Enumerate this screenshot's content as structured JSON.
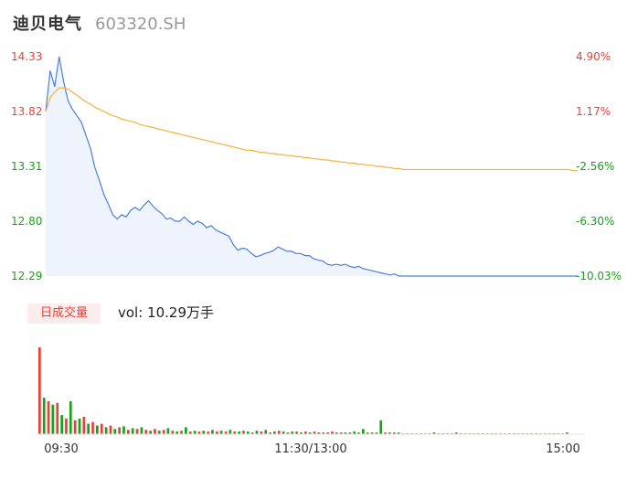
{
  "header": {
    "name": "迪贝电气",
    "code": "603320.SH"
  },
  "volume_panel": {
    "tag": "日成交量",
    "vol_label": "vol: 10.29万手"
  },
  "colors": {
    "up": "#e5433a",
    "down": "#1aa11a",
    "flat": "#999999",
    "price_line": "#4a7fe0",
    "avg_line": "#f2b33d",
    "area_fill": "#eef3fc"
  },
  "chart_data": [
    {
      "type": "line",
      "title": "",
      "y_ticks_left": [
        "14.33",
        "13.82",
        "13.31",
        "12.80",
        "12.29"
      ],
      "y_ticks_right": [
        "4.90%",
        "1.17%",
        "-2.56%",
        "-6.30%",
        "-10.03%"
      ],
      "ylim": [
        12.29,
        14.33
      ],
      "prev_close": 13.66,
      "x_ticks": [
        "09:30",
        "11:30/13:00",
        "15:00"
      ],
      "grid": false,
      "series": [
        {
          "key": "price",
          "values": [
            13.82,
            14.2,
            14.05,
            14.33,
            14.1,
            13.92,
            13.84,
            13.78,
            13.72,
            13.6,
            13.48,
            13.3,
            13.18,
            13.05,
            12.96,
            12.86,
            12.82,
            12.86,
            12.84,
            12.9,
            12.93,
            12.9,
            12.95,
            12.99,
            12.94,
            12.9,
            12.87,
            12.82,
            12.83,
            12.8,
            12.8,
            12.84,
            12.8,
            12.77,
            12.8,
            12.78,
            12.74,
            12.76,
            12.72,
            12.7,
            12.68,
            12.66,
            12.58,
            12.53,
            12.55,
            12.54,
            12.5,
            12.47,
            12.48,
            12.5,
            12.51,
            12.53,
            12.56,
            12.54,
            12.52,
            12.52,
            12.5,
            12.5,
            12.48,
            12.48,
            12.45,
            12.44,
            12.43,
            12.4,
            12.39,
            12.4,
            12.39,
            12.4,
            12.38,
            12.37,
            12.38,
            12.36,
            12.35,
            12.34,
            12.33,
            12.32,
            12.31,
            12.3,
            12.31,
            12.29,
            12.29,
            12.29,
            12.29,
            12.29,
            12.29,
            12.29,
            12.29,
            12.29,
            12.29,
            12.29,
            12.29,
            12.29,
            12.29,
            12.29,
            12.29,
            12.29,
            12.29,
            12.29,
            12.29,
            12.29,
            12.29,
            12.29,
            12.29,
            12.29,
            12.29,
            12.29,
            12.29,
            12.29,
            12.29,
            12.29,
            12.29,
            12.29,
            12.29,
            12.29,
            12.29,
            12.29,
            12.29,
            12.29,
            12.29,
            12.29
          ]
        },
        {
          "key": "average",
          "values": [
            13.82,
            13.95,
            14.0,
            14.04,
            14.04,
            14.03,
            14.0,
            13.97,
            13.94,
            13.91,
            13.89,
            13.86,
            13.84,
            13.82,
            13.8,
            13.78,
            13.77,
            13.75,
            13.74,
            13.73,
            13.72,
            13.7,
            13.69,
            13.68,
            13.67,
            13.66,
            13.65,
            13.64,
            13.63,
            13.62,
            13.61,
            13.6,
            13.59,
            13.58,
            13.57,
            13.56,
            13.55,
            13.54,
            13.53,
            13.52,
            13.51,
            13.5,
            13.49,
            13.48,
            13.47,
            13.46,
            13.46,
            13.45,
            13.44,
            13.44,
            13.43,
            13.43,
            13.42,
            13.42,
            13.41,
            13.41,
            13.4,
            13.4,
            13.39,
            13.39,
            13.38,
            13.38,
            13.37,
            13.37,
            13.36,
            13.36,
            13.35,
            13.35,
            13.34,
            13.34,
            13.33,
            13.33,
            13.32,
            13.32,
            13.31,
            13.31,
            13.3,
            13.3,
            13.29,
            13.29,
            13.28,
            13.28,
            13.28,
            13.28,
            13.28,
            13.28,
            13.28,
            13.28,
            13.28,
            13.28,
            13.28,
            13.28,
            13.28,
            13.28,
            13.28,
            13.28,
            13.28,
            13.28,
            13.28,
            13.28,
            13.28,
            13.28,
            13.28,
            13.28,
            13.28,
            13.28,
            13.28,
            13.28,
            13.28,
            13.28,
            13.28,
            13.28,
            13.28,
            13.28,
            13.28,
            13.28,
            13.28,
            13.28,
            13.27,
            13.27
          ]
        }
      ]
    },
    {
      "type": "bar",
      "title": "",
      "ylim": [
        0,
        100
      ],
      "series": [
        {
          "key": "volume",
          "values": [
            100,
            42,
            38,
            34,
            36,
            22,
            18,
            38,
            16,
            18,
            20,
            12,
            14,
            10,
            12,
            8,
            10,
            6,
            8,
            9,
            5,
            7,
            6,
            8,
            5,
            4,
            6,
            4,
            5,
            7,
            4,
            3,
            4,
            8,
            3,
            4,
            3,
            4,
            3,
            5,
            3,
            4,
            3,
            5,
            3,
            3,
            4,
            3,
            2,
            4,
            3,
            5,
            2,
            3,
            4,
            3,
            2,
            3,
            3,
            2,
            3,
            2,
            3,
            2,
            2,
            2,
            3,
            2,
            2,
            2,
            2,
            3,
            2,
            6,
            2,
            2,
            2,
            16,
            2,
            2,
            2,
            2,
            1,
            1,
            1,
            1,
            1,
            1,
            1,
            2,
            1,
            1,
            1,
            1,
            2,
            1,
            1,
            1,
            1,
            1,
            1,
            1,
            1,
            1,
            1,
            1,
            1,
            1,
            1,
            1,
            1,
            1,
            1,
            1,
            1,
            1,
            1,
            1,
            1,
            2
          ]
        }
      ]
    }
  ]
}
